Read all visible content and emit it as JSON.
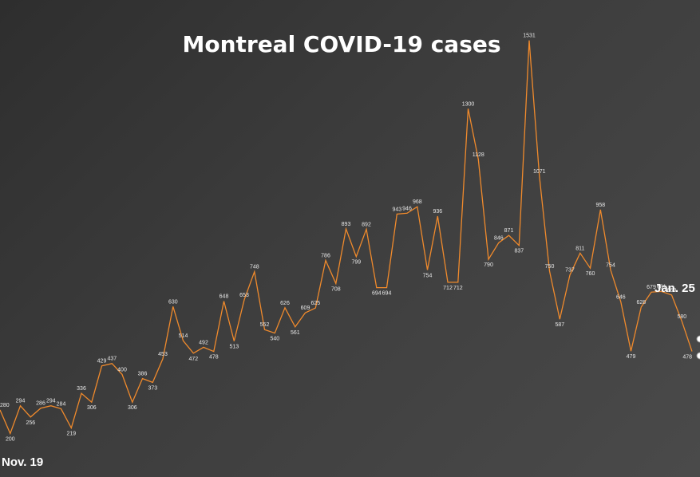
{
  "chart_data": {
    "type": "line",
    "title": "Montreal COVID-19 cases",
    "start_label": "Nov. 19",
    "end_label": "Jan. 25",
    "line_color": "#f08a2c",
    "ylim": [
      150,
      1560
    ],
    "values": [
      280,
      200,
      294,
      256,
      286,
      294,
      284,
      219,
      336,
      306,
      429,
      437,
      400,
      306,
      386,
      373,
      453,
      630,
      514,
      472,
      492,
      478,
      648,
      513,
      653,
      748,
      552,
      540,
      626,
      561,
      609,
      625,
      786,
      708,
      893,
      799,
      892,
      694,
      694,
      943,
      946,
      968,
      754,
      936,
      712,
      712,
      1300,
      1128,
      790,
      846,
      871,
      837,
      1531,
      1071,
      750,
      587,
      737,
      811,
      760,
      958,
      754,
      646,
      479,
      628,
      679,
      681,
      669,
      580,
      478
    ],
    "labels": [
      "280",
      "200",
      "294",
      "256",
      "286",
      "294",
      "284",
      "219",
      "336",
      "306",
      "429",
      "437",
      "400",
      "306",
      "386",
      "373",
      "453",
      "630",
      "514",
      "472",
      "492",
      "478",
      "648",
      "513",
      "653",
      "748",
      "552",
      "540",
      "626",
      "561",
      "609",
      "625",
      "786",
      "708",
      "893",
      "799",
      "892",
      "694",
      "694",
      "943",
      "946",
      "968",
      "754",
      "936",
      "712",
      "712",
      "1300",
      "1128",
      "790",
      "846",
      "871",
      "837",
      "1531",
      "1071",
      "750",
      "587",
      "737",
      "811",
      "760",
      "958",
      "754",
      "646",
      "479",
      "628",
      "679",
      "681",
      "669",
      "580",
      "478"
    ],
    "grid": false,
    "legend": "none"
  }
}
